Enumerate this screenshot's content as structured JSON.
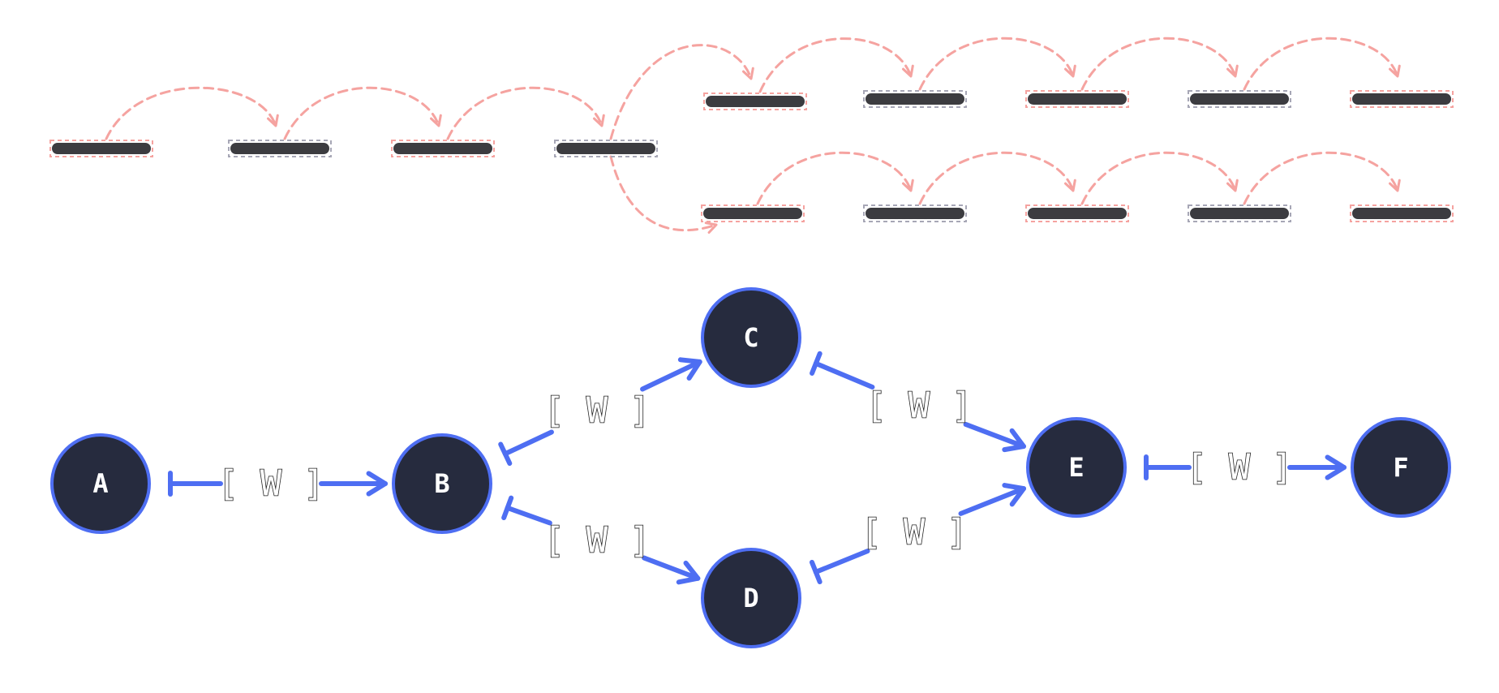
{
  "colors": {
    "node_fill": "#262b3e",
    "node_stroke": "#4e6ef2",
    "edge": "#4e6ef2",
    "segment_bar": "#3c3c40",
    "outline_red": "#f5a3a0",
    "outline_gray": "#a7a7b6",
    "jump_arc": "#f5a3a0"
  },
  "segments": [
    {
      "id": "s1",
      "outline": "red"
    },
    {
      "id": "s2",
      "outline": "gray"
    },
    {
      "id": "s3",
      "outline": "red"
    },
    {
      "id": "s4",
      "outline": "gray"
    },
    {
      "id": "u1",
      "outline": "red"
    },
    {
      "id": "u2",
      "outline": "gray"
    },
    {
      "id": "u3",
      "outline": "red"
    },
    {
      "id": "u4",
      "outline": "gray"
    },
    {
      "id": "u5",
      "outline": "red"
    },
    {
      "id": "l1",
      "outline": "red"
    },
    {
      "id": "l2",
      "outline": "gray"
    },
    {
      "id": "l3",
      "outline": "red"
    },
    {
      "id": "l4",
      "outline": "gray"
    },
    {
      "id": "l5",
      "outline": "red"
    }
  ],
  "jumps": [
    {
      "from": "s1",
      "to": "s2"
    },
    {
      "from": "s2",
      "to": "s3"
    },
    {
      "from": "s3",
      "to": "s4"
    },
    {
      "from": "s4",
      "to": "u1"
    },
    {
      "from": "s4",
      "to": "l1"
    },
    {
      "from": "u1",
      "to": "u2"
    },
    {
      "from": "u2",
      "to": "u3"
    },
    {
      "from": "u3",
      "to": "u4"
    },
    {
      "from": "u4",
      "to": "u5"
    },
    {
      "from": "l1",
      "to": "l2"
    },
    {
      "from": "l2",
      "to": "l3"
    },
    {
      "from": "l3",
      "to": "l4"
    },
    {
      "from": "l4",
      "to": "l5"
    }
  ],
  "nodes": [
    {
      "id": "A",
      "label": "A"
    },
    {
      "id": "B",
      "label": "B"
    },
    {
      "id": "C",
      "label": "C"
    },
    {
      "id": "D",
      "label": "D"
    },
    {
      "id": "E",
      "label": "E"
    },
    {
      "id": "F",
      "label": "F"
    }
  ],
  "edges": [
    {
      "from": "A",
      "to": "B",
      "label": "[ W ]"
    },
    {
      "from": "B",
      "to": "C",
      "label": "[ W ]"
    },
    {
      "from": "B",
      "to": "D",
      "label": "[ W ]"
    },
    {
      "from": "C",
      "to": "E",
      "label": "[ W ]"
    },
    {
      "from": "D",
      "to": "E",
      "label": "[ W ]"
    },
    {
      "from": "E",
      "to": "F",
      "label": "[ W ]"
    }
  ]
}
